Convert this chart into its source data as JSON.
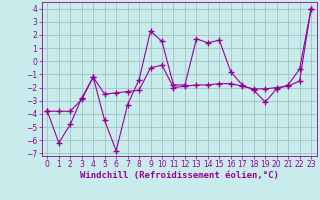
{
  "xlabel": "Windchill (Refroidissement éolien,°C)",
  "bg_color": "#c8ecec",
  "line_color": "#990099",
  "xlim": [
    -0.5,
    23.5
  ],
  "ylim": [
    -7.2,
    4.5
  ],
  "xticks": [
    0,
    1,
    2,
    3,
    4,
    5,
    6,
    7,
    8,
    9,
    10,
    11,
    12,
    13,
    14,
    15,
    16,
    17,
    18,
    19,
    20,
    21,
    22,
    23
  ],
  "yticks": [
    -7,
    -6,
    -5,
    -4,
    -3,
    -2,
    -1,
    0,
    1,
    2,
    3,
    4
  ],
  "series1_x": [
    0,
    1,
    2,
    3,
    4,
    5,
    6,
    7,
    8,
    9,
    10,
    11,
    12,
    13,
    14,
    15,
    16,
    17,
    18,
    19,
    20,
    21,
    22,
    23
  ],
  "series1_y": [
    -3.8,
    -6.2,
    -4.8,
    -2.8,
    -1.2,
    -4.5,
    -6.8,
    -3.3,
    -1.4,
    2.3,
    1.5,
    -1.8,
    -1.8,
    1.7,
    1.4,
    1.6,
    -0.8,
    -1.8,
    -2.2,
    -3.1,
    -2.1,
    -1.8,
    -0.6,
    4.0
  ],
  "series2_x": [
    0,
    1,
    2,
    3,
    4,
    5,
    6,
    7,
    8,
    9,
    10,
    11,
    12,
    13,
    14,
    15,
    16,
    17,
    18,
    19,
    20,
    21,
    22,
    23
  ],
  "series2_y": [
    -3.8,
    -3.8,
    -3.8,
    -2.9,
    -1.2,
    -2.5,
    -2.4,
    -2.3,
    -2.2,
    -0.5,
    -0.3,
    -2.0,
    -1.9,
    -1.8,
    -1.8,
    -1.7,
    -1.7,
    -1.9,
    -2.1,
    -2.1,
    -2.0,
    -1.9,
    -1.5,
    4.0
  ],
  "grid_color": "#9ababa",
  "font_color": "#990099",
  "tick_fontsize": 5.5,
  "xlabel_fontsize": 6.5
}
